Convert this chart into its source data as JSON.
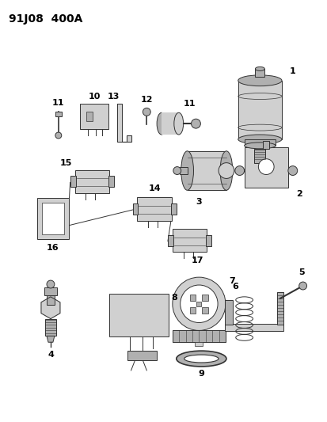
{
  "title": "91J08  400A",
  "background_color": "#ffffff",
  "line_color": "#333333",
  "label_color": "#000000",
  "title_fontsize": 10,
  "label_fontsize": 8,
  "fig_width": 4.14,
  "fig_height": 5.33,
  "dpi": 100
}
